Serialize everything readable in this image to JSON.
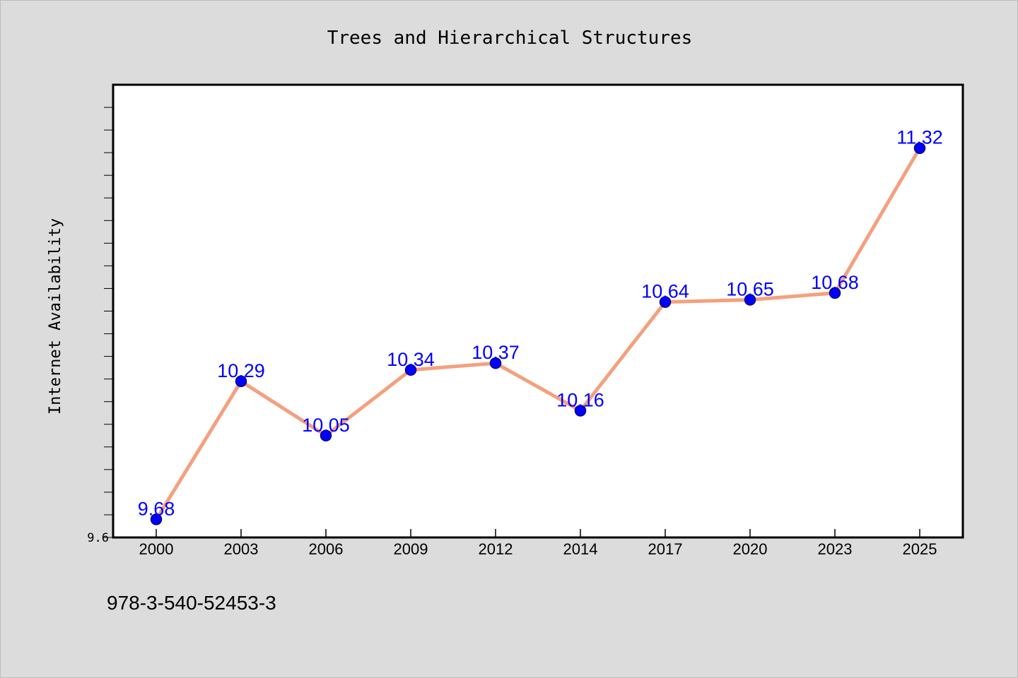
{
  "footer": {
    "isbn": "978-3-540-52453-3"
  },
  "colors": {
    "background": "#dcdcdc",
    "plot_background": "#ffffff",
    "line": "#f4a07e",
    "marker": "#0000ff",
    "marker_edge": "#000080",
    "data_label": "#0000ff"
  },
  "chart_data": {
    "type": "line",
    "title": "Trees and Hierarchical Structures",
    "xlabel": "",
    "ylabel": "Internet Availability",
    "categories": [
      "2000",
      "2003",
      "2006",
      "2009",
      "2012",
      "2014",
      "2017",
      "2020",
      "2023",
      "2025"
    ],
    "series": [
      {
        "values": [
          9.68,
          10.29,
          10.05,
          10.34,
          10.37,
          10.16,
          10.64,
          10.65,
          10.68,
          11.32
        ]
      }
    ],
    "data_labels": [
      "9.68",
      "10.29",
      "10.05",
      "10.34",
      "10.37",
      "10.16",
      "10.64",
      "10.65",
      "10.68",
      "11.32"
    ],
    "yticks": [
      9.6
    ],
    "ytick_labels": [
      "9.6"
    ],
    "ylim": [
      9.6,
      11.6
    ],
    "grid": false,
    "legend": "none"
  }
}
